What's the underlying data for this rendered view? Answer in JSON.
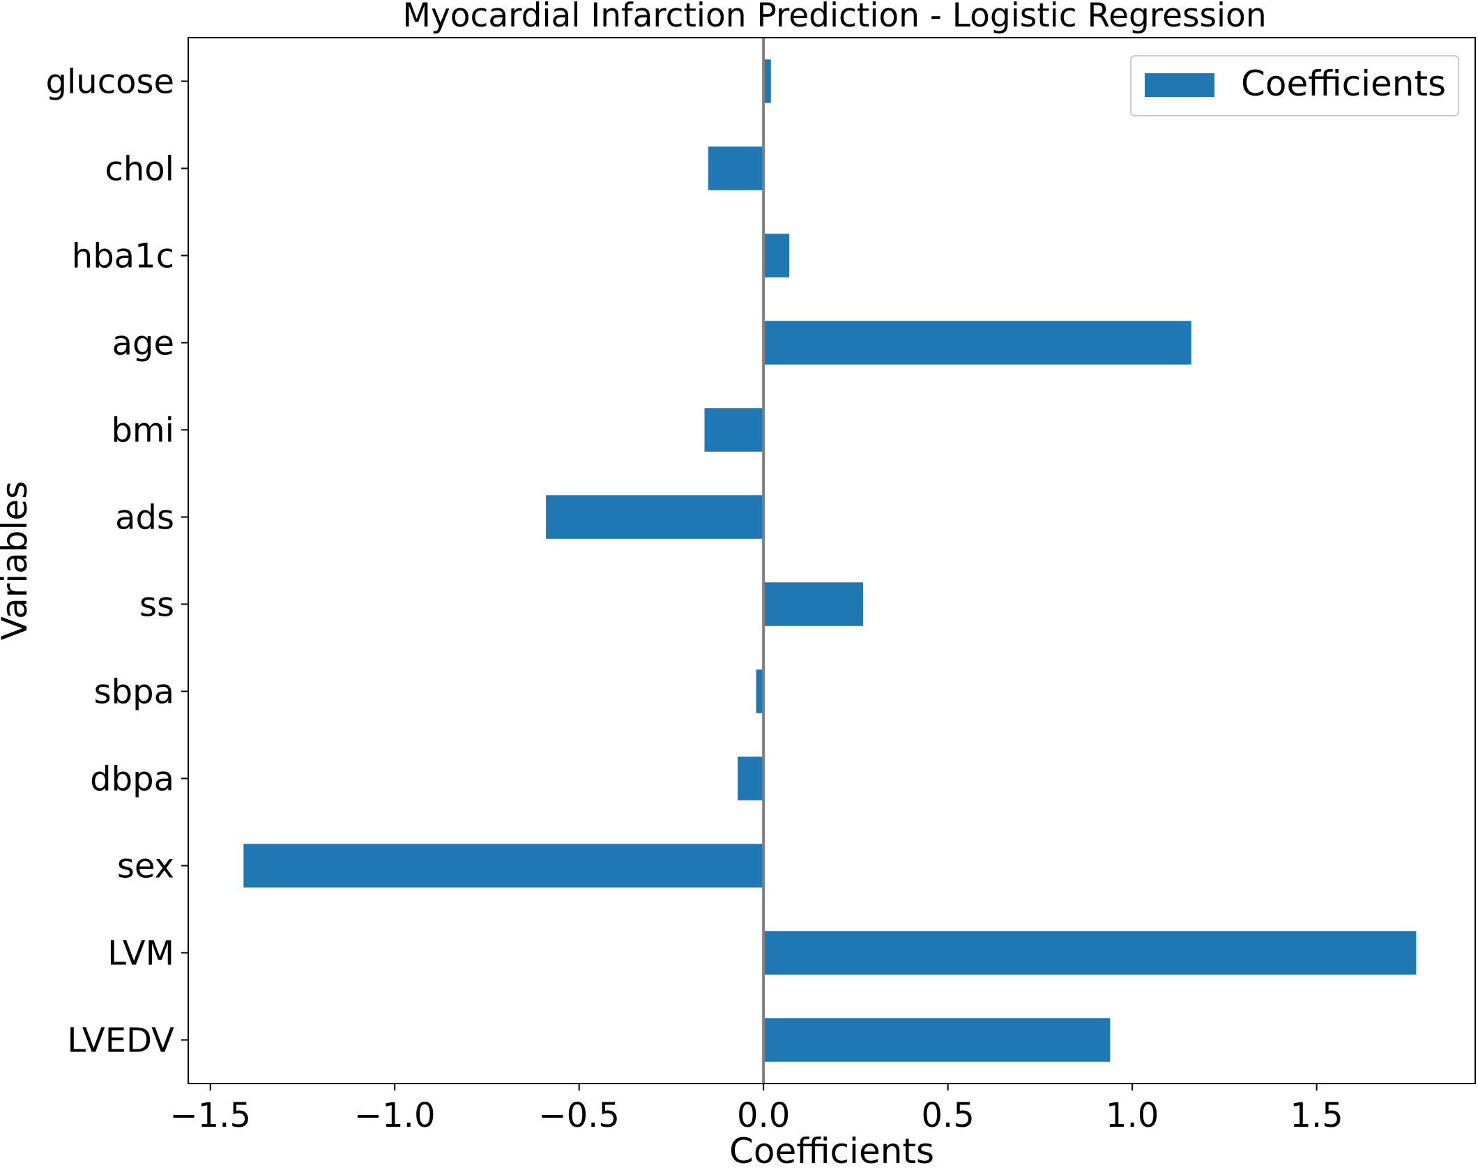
{
  "chart_data": {
    "type": "bar",
    "orientation": "horizontal",
    "title": "Myocardial Infarction Prediction - Logistic Regression",
    "xlabel": "Coefficients",
    "ylabel": "Variables",
    "categories": [
      "LVEDV",
      "LVM",
      "sex",
      "dbpa",
      "sbpa",
      "ss",
      "ads",
      "bmi",
      "age",
      "hba1c",
      "chol",
      "glucose"
    ],
    "series": [
      {
        "name": "Coefficients",
        "color": "#1f77b4",
        "values": [
          0.94,
          1.77,
          -1.41,
          -0.07,
          -0.02,
          0.27,
          -0.59,
          -0.16,
          1.16,
          0.07,
          -0.15,
          0.02
        ]
      }
    ],
    "xlim": [
      -1.56,
      1.93
    ],
    "xticks": [
      -1.5,
      -1.0,
      -0.5,
      0.0,
      0.5,
      1.0,
      1.5
    ],
    "xtick_labels": [
      "−1.5",
      "−1.0",
      "−0.5",
      "0.0",
      "0.5",
      "1.0",
      "1.5"
    ],
    "zero_line_color": "#808080",
    "grid": false,
    "legend": {
      "position": "top-right",
      "label": "Coefficients"
    }
  }
}
